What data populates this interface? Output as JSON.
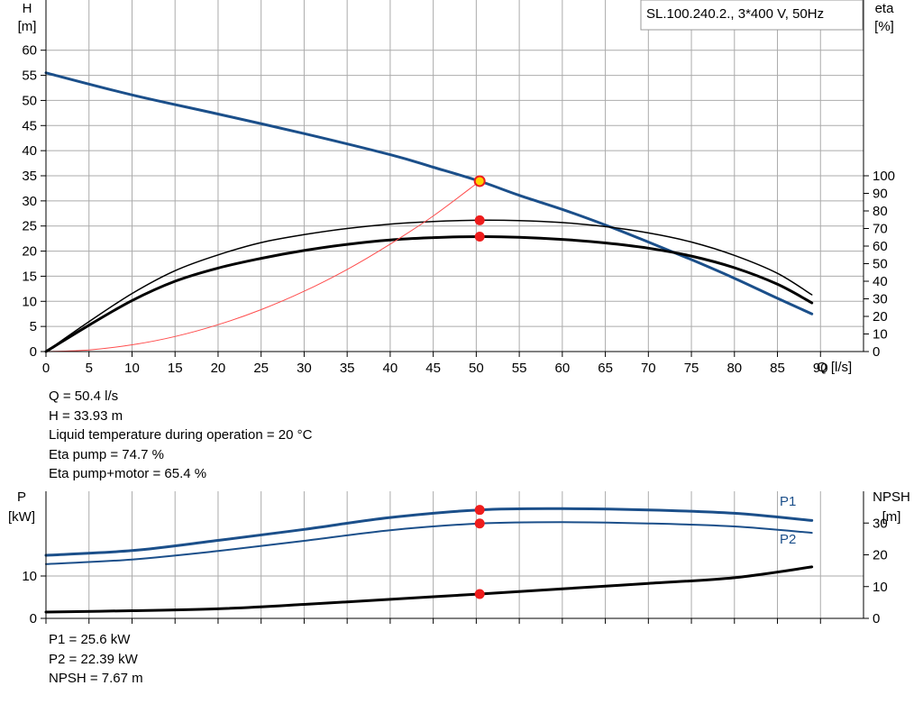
{
  "colors": {
    "head": "#1b4f8a",
    "eta": "#000000",
    "system": "#ff4d4d",
    "point": "#ee1c1c",
    "duty_fill": "#ffd200",
    "grid": "#ababab",
    "frame": "#000000"
  },
  "legend_box": "SL.100.240.2., 3*400 V, 50Hz",
  "upper_readouts": [
    "Q = 50.4 l/s",
    "H = 33.93 m",
    "Liquid temperature during operation = 20 °C",
    "Eta pump = 74.7 %",
    "Eta pump+motor = 65.4 %"
  ],
  "lower_readouts": [
    "P1 = 25.6 kW",
    "P2 = 22.39 kW",
    "NPSH = 7.67 m"
  ],
  "chart_data": [
    {
      "type": "line",
      "x_axis": {
        "label": "Q [l/s]",
        "unit": "l/s",
        "range": [
          0,
          95
        ],
        "ticks": [
          0,
          5,
          10,
          15,
          20,
          25,
          30,
          35,
          40,
          45,
          50,
          55,
          60,
          65,
          70,
          75,
          80,
          85,
          90
        ]
      },
      "y_axis_left": {
        "label_top": "H",
        "label_unit": "[m]",
        "range": [
          0,
          70
        ],
        "ticks": [
          0,
          5,
          10,
          15,
          20,
          25,
          30,
          35,
          40,
          45,
          50,
          55,
          60
        ]
      },
      "y_axis_right": {
        "label_top": "eta",
        "label_unit": "[%]",
        "range": [
          0,
          200
        ],
        "ticks": [
          0,
          10,
          20,
          30,
          40,
          50,
          60,
          70,
          80,
          90,
          100
        ]
      },
      "grid": true,
      "series": [
        {
          "key": "head",
          "axis": "left",
          "width": 3,
          "x": [
            0,
            10,
            20,
            30,
            40,
            45,
            50.4,
            55,
            60,
            65,
            70,
            75,
            80,
            85,
            89
          ],
          "y": [
            55.5,
            51.1,
            47.3,
            43.4,
            39.2,
            36.7,
            33.93,
            31.1,
            28.3,
            25.2,
            21.8,
            18.3,
            14.6,
            10.6,
            7.5
          ]
        },
        {
          "key": "eta_pump",
          "axis": "right",
          "width": 1.5,
          "x": [
            0,
            5,
            10,
            15,
            20,
            25,
            30,
            35,
            40,
            45,
            50.4,
            55,
            60,
            65,
            70,
            75,
            80,
            85,
            89
          ],
          "y": [
            0,
            17,
            33,
            46,
            55,
            62,
            66.5,
            70,
            72.5,
            74,
            74.7,
            74.5,
            73.4,
            71.1,
            67.5,
            62.3,
            54.7,
            44.5,
            32.3
          ]
        },
        {
          "key": "eta_pump_motor",
          "axis": "right",
          "width": 3,
          "x": [
            0,
            5,
            10,
            15,
            20,
            25,
            30,
            35,
            40,
            45,
            50.4,
            55,
            60,
            65,
            70,
            75,
            80,
            85,
            89
          ],
          "y": [
            0,
            15,
            29,
            40,
            47.5,
            53,
            57.5,
            61,
            63.5,
            64.8,
            65.4,
            65,
            63.8,
            61.8,
            58.8,
            54.3,
            47.7,
            38.3,
            27.7
          ]
        },
        {
          "key": "system",
          "axis": "left",
          "width": 1,
          "x": [
            0,
            5,
            10,
            15,
            20,
            25,
            30,
            35,
            40,
            45,
            50.4
          ],
          "y": [
            0,
            0.33,
            1.34,
            3.0,
            5.34,
            8.35,
            12.0,
            16.35,
            21.4,
            27.0,
            33.93
          ]
        }
      ],
      "markers": [
        {
          "axis": "right",
          "x": 50.4,
          "y": 74.7,
          "label": "Eta pump"
        },
        {
          "axis": "right",
          "x": 50.4,
          "y": 65.4,
          "label": "Eta pump+motor"
        }
      ],
      "duty_point": {
        "x": 50.4,
        "y": 33.93
      }
    },
    {
      "type": "line",
      "x_axis": {
        "range": [
          0,
          95
        ],
        "ticks": [
          0,
          5,
          10,
          15,
          20,
          25,
          30,
          35,
          40,
          45,
          50,
          55,
          60,
          65,
          70,
          75,
          80,
          85,
          90
        ]
      },
      "y_axis_left": {
        "label_top": "P",
        "label_unit": "[kW]",
        "range": [
          0,
          30
        ],
        "ticks": [
          0,
          10
        ]
      },
      "y_axis_right": {
        "label_top": "NPSH",
        "label_unit": "[m]",
        "range": [
          0,
          40
        ],
        "ticks": [
          0,
          10,
          20,
          30
        ]
      },
      "grid": true,
      "series": [
        {
          "key": "P1",
          "name": "P1",
          "axis": "left",
          "width": 3,
          "x": [
            0,
            10,
            20,
            30,
            40,
            50.4,
            60,
            70,
            80,
            89
          ],
          "y": [
            14.9,
            16.0,
            18.4,
            21.0,
            23.8,
            25.6,
            25.9,
            25.6,
            24.8,
            23.1
          ]
        },
        {
          "key": "P2",
          "name": "P2",
          "axis": "left",
          "width": 2,
          "x": [
            0,
            10,
            20,
            30,
            40,
            50.4,
            60,
            70,
            80,
            89
          ],
          "y": [
            12.8,
            13.9,
            15.9,
            18.3,
            20.8,
            22.39,
            22.7,
            22.4,
            21.7,
            20.2
          ]
        },
        {
          "key": "npsh",
          "axis": "right",
          "width": 3,
          "x": [
            0,
            10,
            20,
            30,
            40,
            50.4,
            60,
            70,
            80,
            89
          ],
          "y": [
            2.0,
            2.4,
            3.0,
            4.4,
            6.0,
            7.67,
            9.3,
            11.0,
            12.8,
            16.2
          ]
        }
      ],
      "markers": [
        {
          "axis": "left",
          "x": 50.4,
          "y": 25.6,
          "label": "P1"
        },
        {
          "axis": "left",
          "x": 50.4,
          "y": 22.39,
          "label": "P2"
        },
        {
          "axis": "right",
          "x": 50.4,
          "y": 7.67,
          "label": "NPSH"
        }
      ]
    }
  ]
}
